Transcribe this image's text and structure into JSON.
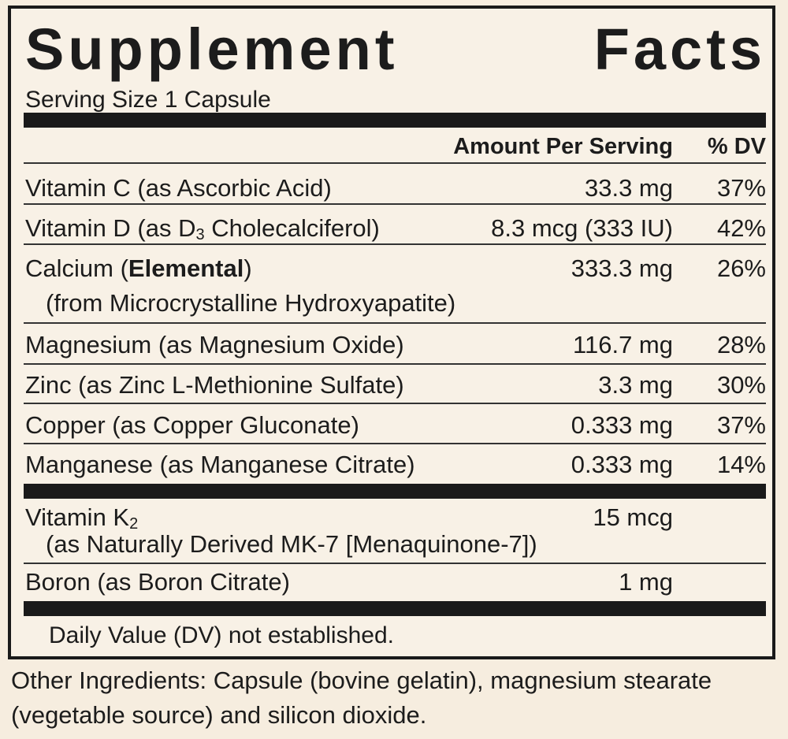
{
  "title": [
    "Supplement",
    "Facts"
  ],
  "serving_size": "Serving Size 1 Capsule",
  "header": {
    "amount": "Amount Per Serving",
    "dv": "% DV"
  },
  "rows": [
    {
      "name": [
        "Vitamin C (as Ascorbic Acid)"
      ],
      "amount": "33.3 mg",
      "dv": "37%"
    },
    {
      "name": [
        "Vitamin D (as D",
        "3",
        " Cholecalciferol)"
      ],
      "amount": "8.3 mcg (333 IU)",
      "dv": "42%"
    },
    {
      "name": [
        "Calcium (",
        "Elemental",
        ")"
      ],
      "detail": "(from Microcrystalline Hydroxyapatite)",
      "amount": "333.3 mg",
      "dv": "26%"
    },
    {
      "name": [
        "Magnesium (as Magnesium Oxide)"
      ],
      "amount": "116.7 mg",
      "dv": "28%"
    },
    {
      "name": [
        "Zinc (as Zinc L-Methionine Sulfate)"
      ],
      "amount": "3.3 mg",
      "dv": "30%"
    },
    {
      "name": [
        "Copper (as Copper Gluconate)"
      ],
      "amount": "0.333 mg",
      "dv": "37%"
    },
    {
      "name": [
        "Manganese (as Manganese Citrate)"
      ],
      "amount": "0.333 mg",
      "dv": "14%"
    },
    {
      "name": [
        "Vitamin K",
        "2"
      ],
      "detail": "(as Naturally Derived MK-7 [Menaquinone-7])",
      "amount": "15 mcg"
    },
    {
      "name": [
        "Boron (as Boron Citrate)"
      ],
      "amount": "1 mg"
    }
  ],
  "footnote": "Daily Value (DV) not established.",
  "other_ingredients": "Other Ingredients: Capsule (bovine gelatin), magnesium stearate (vegetable source) and silicon dioxide."
}
